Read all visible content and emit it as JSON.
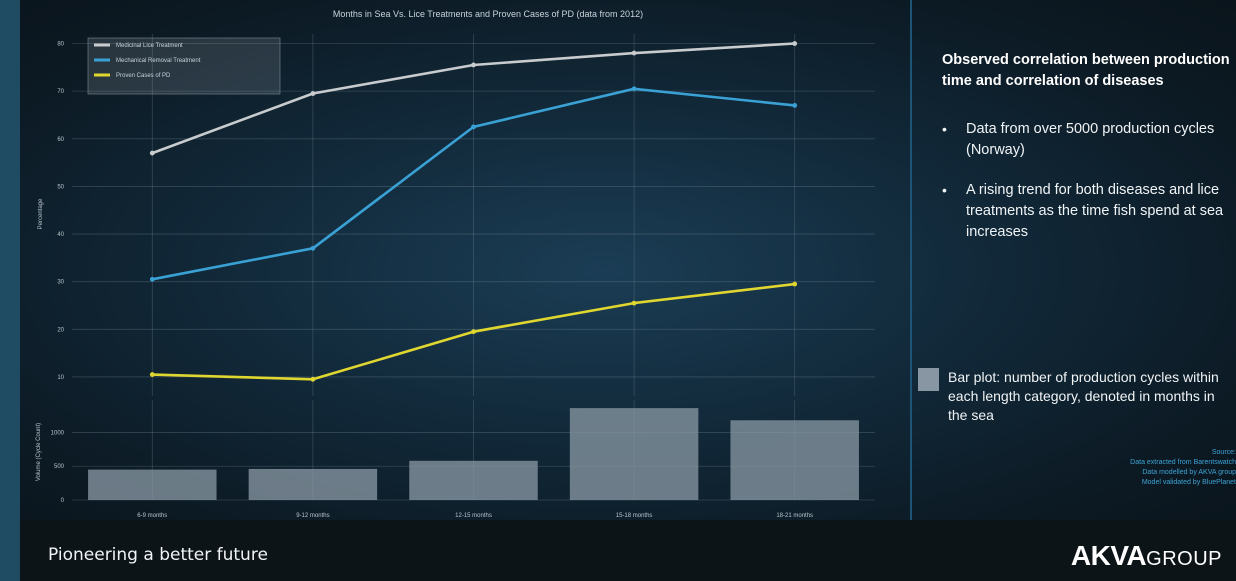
{
  "chart_data": [
    {
      "type": "line",
      "title": "Months in Sea Vs. Lice Treatments and Proven Cases of PD (data from 2012)",
      "ylabel": "Percentage",
      "xlabel": "",
      "categories": [
        "6-9 months",
        "9-12 months",
        "12-15 months",
        "15-18 months",
        "18-21 months"
      ],
      "ylim": [
        6,
        82
      ],
      "yticks": [
        10,
        20,
        30,
        40,
        50,
        60,
        70,
        80
      ],
      "grid": true,
      "legend": "top-left",
      "series": [
        {
          "name": "Medicinal Lice Treatment",
          "color": "#c9cccf",
          "values": [
            57,
            69.5,
            75.5,
            78,
            80
          ]
        },
        {
          "name": "Mechanical Removal Treatment",
          "color": "#3aa1d4",
          "values": [
            30.5,
            37,
            62.5,
            70.5,
            67
          ]
        },
        {
          "name": "Proven Cases of PD",
          "color": "#e0d630",
          "values": [
            10.5,
            9.5,
            19.5,
            25.5,
            29.5
          ]
        }
      ]
    },
    {
      "type": "bar",
      "ylabel": "Volume (Cycle Count)",
      "categories": [
        "6-9 months",
        "9-12 months",
        "12-15 months",
        "15-18 months",
        "18-21 months"
      ],
      "values": [
        450,
        460,
        580,
        1360,
        1180
      ],
      "ylim": [
        0,
        1480
      ],
      "yticks": [
        0,
        500,
        1000
      ],
      "ytick_labels": [
        "0",
        "500",
        "1000"
      ],
      "color": "#8796a2",
      "grid": true
    }
  ],
  "panel": {
    "heading": "Observed correlation between production time and correlation of diseases",
    "bullets": [
      {
        "dot": "•",
        "text": "Data from over 5000 production cycles (Norway)"
      },
      {
        "dot": "•",
        "text": "A rising trend for both diseases and lice treatments as the time fish spend at sea increases"
      }
    ],
    "bar_note": "Bar plot: number of production cycles within each length category, denoted in months in the sea",
    "source": {
      "title": "Source:",
      "lines": [
        "Data extracted from Barentswatch",
        "Data modelled by AKVA group",
        "Model validated by BluePlanet"
      ]
    }
  },
  "footer": {
    "tagline": "Pioneering a better future",
    "brand_bold": "AKVA",
    "brand_light": "GROUP"
  },
  "colors": {
    "accent": "#3aa1d4",
    "divider": "#1e5576",
    "bar": "#8796a2"
  }
}
